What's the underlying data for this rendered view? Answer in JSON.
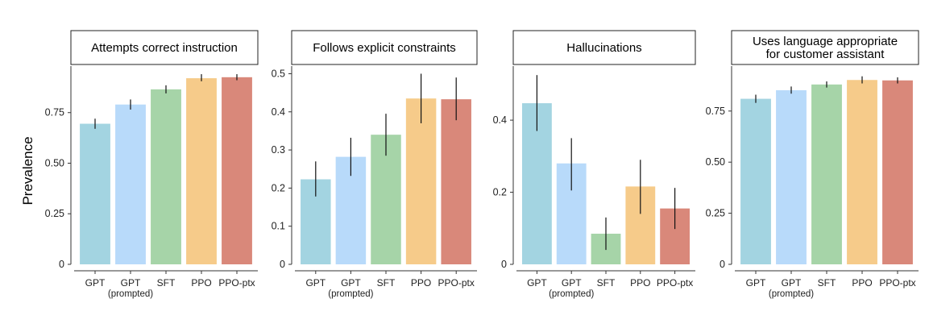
{
  "figure": {
    "ylabel": "Prevalence"
  },
  "chart_data": [
    {
      "type": "bar",
      "title": "Attempts correct instruction",
      "ylabel": "Prevalence",
      "categories": [
        "GPT",
        "GPT",
        "SFT",
        "PPO",
        "PPO-ptx"
      ],
      "category_sublabels": [
        "",
        "(prompted)",
        "",
        "",
        ""
      ],
      "values": [
        0.695,
        0.79,
        0.865,
        0.92,
        0.925
      ],
      "error_low": [
        0.67,
        0.765,
        0.845,
        0.905,
        0.91
      ],
      "error_high": [
        0.72,
        0.815,
        0.885,
        0.94,
        0.94
      ],
      "ylim": [
        0,
        0.98
      ],
      "yticks": [
        0,
        0.25,
        0.5,
        0.75
      ],
      "ytick_labels": [
        "0",
        "0.25",
        "0.50",
        "0.75"
      ],
      "colors": [
        "#A3D4E1",
        "#B8DAFA",
        "#A6D4A8",
        "#F6CB8A",
        "#D9887A"
      ],
      "grid": false
    },
    {
      "type": "bar",
      "title": "Follows explicit constraints",
      "categories": [
        "GPT",
        "GPT",
        "SFT",
        "PPO",
        "PPO-ptx"
      ],
      "category_sublabels": [
        "",
        "(prompted)",
        "",
        "",
        ""
      ],
      "values": [
        0.223,
        0.282,
        0.34,
        0.435,
        0.433
      ],
      "error_low": [
        0.178,
        0.232,
        0.285,
        0.37,
        0.378
      ],
      "error_high": [
        0.27,
        0.332,
        0.395,
        0.5,
        0.49
      ],
      "ylim": [
        0,
        0.52
      ],
      "yticks": [
        0,
        0.1,
        0.2,
        0.3,
        0.4,
        0.5
      ],
      "ytick_labels": [
        "0",
        "0.1",
        "0.2",
        "0.3",
        "0.4",
        "0.5"
      ],
      "colors": [
        "#A3D4E1",
        "#B8DAFA",
        "#A6D4A8",
        "#F6CB8A",
        "#D9887A"
      ],
      "grid": false
    },
    {
      "type": "bar",
      "title": "Hallucinations",
      "categories": [
        "GPT",
        "GPT",
        "SFT",
        "PPO",
        "PPO-ptx"
      ],
      "category_sublabels": [
        "",
        "(prompted)",
        "",
        "",
        ""
      ],
      "values": [
        0.447,
        0.28,
        0.085,
        0.216,
        0.155
      ],
      "error_low": [
        0.37,
        0.205,
        0.04,
        0.14,
        0.098
      ],
      "error_high": [
        0.525,
        0.35,
        0.13,
        0.29,
        0.212
      ],
      "ylim": [
        0,
        0.55
      ],
      "yticks": [
        0,
        0.2,
        0.4
      ],
      "ytick_labels": [
        "0",
        "0.2",
        "0.4"
      ],
      "colors": [
        "#A3D4E1",
        "#B8DAFA",
        "#A6D4A8",
        "#F6CB8A",
        "#D9887A"
      ],
      "grid": false
    },
    {
      "type": "bar",
      "title": "Uses language appropriate for customer assistant",
      "title_lines": [
        "Uses language appropriate",
        "for customer assistant"
      ],
      "categories": [
        "GPT",
        "GPT",
        "SFT",
        "PPO",
        "PPO-ptx"
      ],
      "category_sublabels": [
        "",
        "(prompted)",
        "",
        "",
        ""
      ],
      "values": [
        0.81,
        0.852,
        0.88,
        0.902,
        0.9
      ],
      "error_low": [
        0.79,
        0.835,
        0.865,
        0.885,
        0.885
      ],
      "error_high": [
        0.83,
        0.87,
        0.895,
        0.92,
        0.915
      ],
      "ylim": [
        0,
        0.97
      ],
      "yticks": [
        0,
        0.25,
        0.5,
        0.75
      ],
      "ytick_labels": [
        "0",
        "0.25",
        "0.50",
        "0.75"
      ],
      "colors": [
        "#A3D4E1",
        "#B8DAFA",
        "#A6D4A8",
        "#F6CB8A",
        "#D9887A"
      ],
      "grid": false
    }
  ]
}
